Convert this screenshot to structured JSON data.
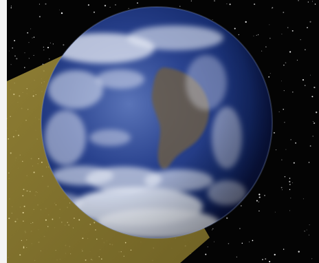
{
  "scene": {
    "description_icons": [
      "earth-globe",
      "light-beam",
      "starfield"
    ]
  },
  "colors": {
    "border": "#f4f4f4",
    "space": "#040404",
    "beam": "#8a7a2e",
    "beam_edge": "#a8954a",
    "ocean_deep": "#0f1f5e",
    "ocean": "#2a438f",
    "ocean_light": "#5a74b8",
    "cloud": "#e8ecf5",
    "land": "#6a5d4a",
    "star": "#ffffff"
  }
}
